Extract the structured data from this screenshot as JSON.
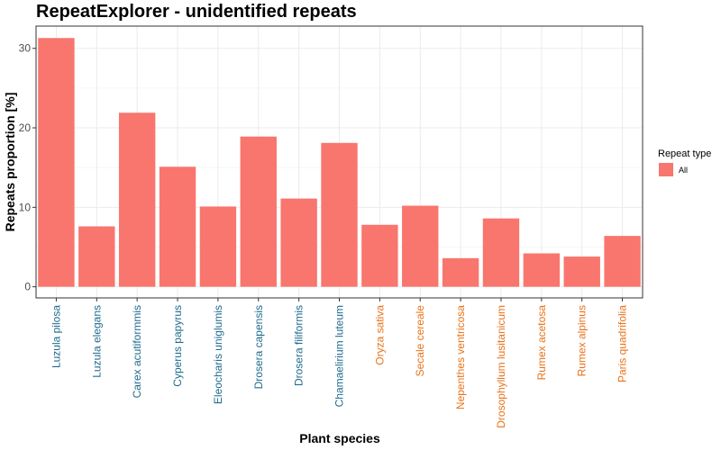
{
  "chart_data": {
    "type": "bar",
    "title": "RepeatExplorer - unidentified repeats",
    "xlabel": "Plant species",
    "ylabel": "Repeats proportion [%]",
    "categories": [
      "Luzula pilosa",
      "Luzula elegans",
      "Carex acutiformmis",
      "Cyperus papyrus",
      "Eleocharis uniglumis",
      "Drosera capensis",
      "Drosera filiformis",
      "Chamaelirium luteum",
      "Oryza sativa",
      "Secale cereale",
      "Nepenthes ventricosa",
      "Drosophyllum lusitanicum",
      "Rumex acetosa",
      "Rumex alpinus",
      "Paris quadrifolia"
    ],
    "category_colors": [
      "#1f6b8e",
      "#1f6b8e",
      "#1f6b8e",
      "#1f6b8e",
      "#1f6b8e",
      "#1f6b8e",
      "#1f6b8e",
      "#1f6b8e",
      "#e8731a",
      "#e8731a",
      "#e8731a",
      "#e8731a",
      "#e8731a",
      "#e8731a",
      "#e8731a"
    ],
    "series": [
      {
        "name": "All",
        "color": "#f8766d",
        "values": [
          31.3,
          7.6,
          21.9,
          15.1,
          10.1,
          18.9,
          11.1,
          18.1,
          7.8,
          10.2,
          3.6,
          8.6,
          4.2,
          3.8,
          6.4
        ]
      }
    ],
    "ylim": [
      -1.4,
      32.8
    ],
    "yticks": [
      0,
      10,
      20,
      30
    ],
    "grid": true,
    "legend": {
      "title": "Repeat type",
      "position": "right",
      "entries": [
        "All"
      ]
    }
  }
}
